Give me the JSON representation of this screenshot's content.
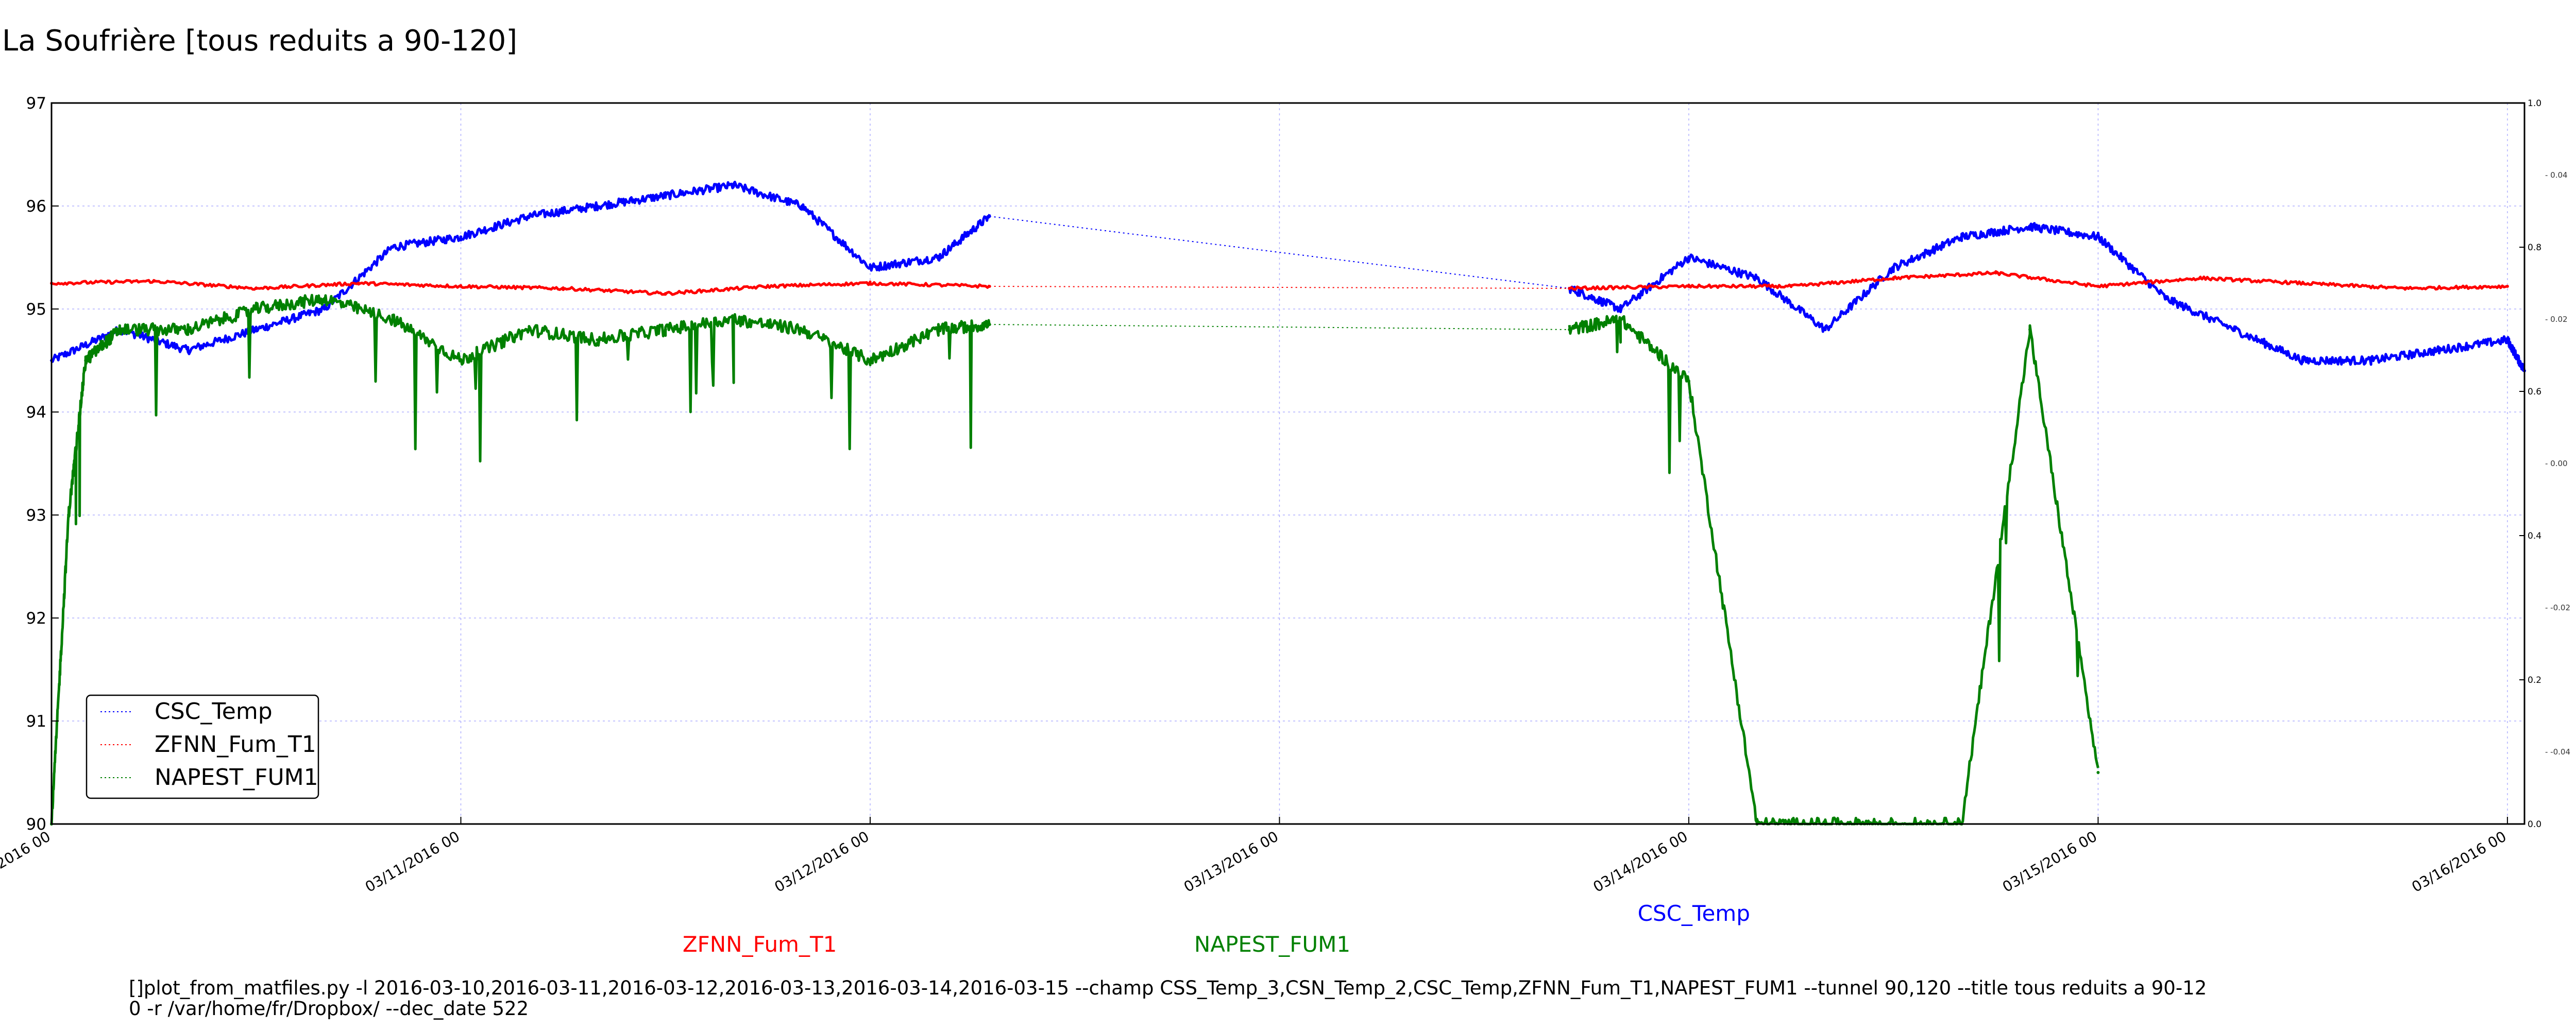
{
  "chart_data": {
    "type": "line",
    "title": "La Soufrière [tous reduits a 90-120]",
    "xlabel": "",
    "ylabel": "",
    "x_range": [
      "2016-03-10 00:00",
      "2016-03-16 01:00"
    ],
    "ylim": [
      90,
      97
    ],
    "yticks": [
      "90",
      "91",
      "92",
      "93",
      "94",
      "95",
      "96",
      "97"
    ],
    "xticks": [
      "03/10/2016 00",
      "03/11/2016 00",
      "03/12/2016 00",
      "03/13/2016 00",
      "03/14/2016 00",
      "03/15/2016 00",
      "03/16/2016 00"
    ],
    "right_axis_outer": {
      "ylim": [
        0.0,
        1.0
      ],
      "ticks": [
        "0.0",
        "0.2",
        "0.4",
        "0.6",
        "0.8",
        "1.0"
      ]
    },
    "right_axis_inner": {
      "ticks": [
        "-0.04",
        "-0.02",
        "0.00",
        "0.02",
        "0.04"
      ]
    },
    "grid": true,
    "legend": "lower-left",
    "legend_entries": [
      "CSC_Temp",
      "ZFNN_Fum_T1",
      "NAPEST_FUM1"
    ],
    "series": [
      {
        "name": "CSC_Temp",
        "color": "#0000ff",
        "x": [
          "2016-03-10 00:00",
          "2016-03-10 04:00",
          "2016-03-10 08:00",
          "2016-03-10 12:00",
          "2016-03-10 16:00",
          "2016-03-10 20:00",
          "2016-03-11 00:00",
          "2016-03-11 04:00",
          "2016-03-11 08:00",
          "2016-03-11 12:00",
          "2016-03-11 16:00",
          "2016-03-11 20:00",
          "2016-03-12 00:00",
          "2016-03-12 04:00",
          "2016-03-12 07:00",
          "2016-03-13 17:00",
          "2016-03-13 20:00",
          "2016-03-14 00:00",
          "2016-03-14 04:00",
          "2016-03-14 08:00",
          "2016-03-14 12:00",
          "2016-03-14 16:00",
          "2016-03-14 20:00",
          "2016-03-15 00:00",
          "2016-03-15 04:00",
          "2016-03-15 08:00",
          "2016-03-15 12:00",
          "2016-03-15 16:00",
          "2016-03-15 20:00",
          "2016-03-16 00:00",
          "2016-03-16 01:00"
        ],
        "values": [
          94.5,
          94.8,
          94.6,
          94.8,
          95.0,
          95.6,
          95.7,
          95.9,
          96.0,
          96.1,
          96.2,
          96.0,
          95.4,
          95.5,
          95.9,
          95.2,
          95.0,
          95.5,
          95.3,
          94.8,
          95.4,
          95.7,
          95.8,
          95.7,
          95.1,
          94.8,
          94.5,
          94.5,
          94.6,
          94.7,
          94.4
        ]
      },
      {
        "name": "ZFNN_Fum_T1",
        "color": "#ff0000",
        "x": [
          "2016-03-10 00:00",
          "2016-03-10 06:00",
          "2016-03-10 12:00",
          "2016-03-10 18:00",
          "2016-03-11 00:00",
          "2016-03-11 06:00",
          "2016-03-11 12:00",
          "2016-03-11 18:00",
          "2016-03-12 00:00",
          "2016-03-12 07:00",
          "2016-03-13 17:00",
          "2016-03-14 00:00",
          "2016-03-14 06:00",
          "2016-03-14 12:00",
          "2016-03-14 18:00",
          "2016-03-15 00:00",
          "2016-03-15 06:00",
          "2016-03-15 12:00",
          "2016-03-15 18:00",
          "2016-03-16 00:00"
        ],
        "values": [
          95.25,
          95.27,
          95.2,
          95.25,
          95.22,
          95.2,
          95.15,
          95.22,
          95.25,
          95.22,
          95.2,
          95.22,
          95.22,
          95.3,
          95.35,
          95.22,
          95.3,
          95.25,
          95.2,
          95.22
        ]
      },
      {
        "name": "NAPEST_FUM1",
        "color": "#008000",
        "x": [
          "2016-03-10 00:00",
          "2016-03-10 01:00",
          "2016-03-10 02:00",
          "2016-03-10 04:00",
          "2016-03-10 08:00",
          "2016-03-10 12:00",
          "2016-03-10 16:00",
          "2016-03-10 20:00",
          "2016-03-11 00:00",
          "2016-03-11 04:00",
          "2016-03-11 08:00",
          "2016-03-11 12:00",
          "2016-03-11 16:00",
          "2016-03-11 20:00",
          "2016-03-12 00:00",
          "2016-03-12 04:00",
          "2016-03-12 07:00",
          "2016-03-13 17:00",
          "2016-03-13 20:00",
          "2016-03-14 00:00",
          "2016-03-14 04:00",
          "2016-03-14 08:00",
          "2016-03-14 12:00",
          "2016-03-14 16:00",
          "2016-03-14 20:00",
          "2016-03-15 00:00"
        ],
        "values": [
          90.0,
          93.0,
          94.5,
          94.8,
          94.8,
          95.0,
          95.1,
          94.9,
          94.5,
          94.8,
          94.7,
          94.8,
          94.9,
          94.8,
          94.5,
          94.8,
          94.85,
          94.8,
          94.9,
          94.3,
          90.0,
          90.0,
          90.0,
          90.0,
          94.8,
          90.5
        ]
      }
    ],
    "annotations": [
      {
        "text": "ZFNN_Fum_T1",
        "color": "#ff0000",
        "at_x": "2016-03-11 13:00"
      },
      {
        "text": "NAPEST_FUM1",
        "color": "#008000",
        "at_x": "2016-03-12 19:00"
      },
      {
        "text": "CSC_Temp",
        "color": "#0000ff",
        "at_x": "2016-03-13 21:00"
      }
    ],
    "command_line": [
      "[]plot_from_matfiles.py -l 2016-03-10,2016-03-11,2016-03-12,2016-03-13,2016-03-14,2016-03-15 --champ CSS_Temp_3,CSN_Temp_2,CSC_Temp,ZFNN_Fum_T1,NAPEST_FUM1 --tunnel 90,120 --title tous reduits a 90-12",
      "0 -r /var/home/fr/Dropbox/ --dec_date 522"
    ]
  }
}
